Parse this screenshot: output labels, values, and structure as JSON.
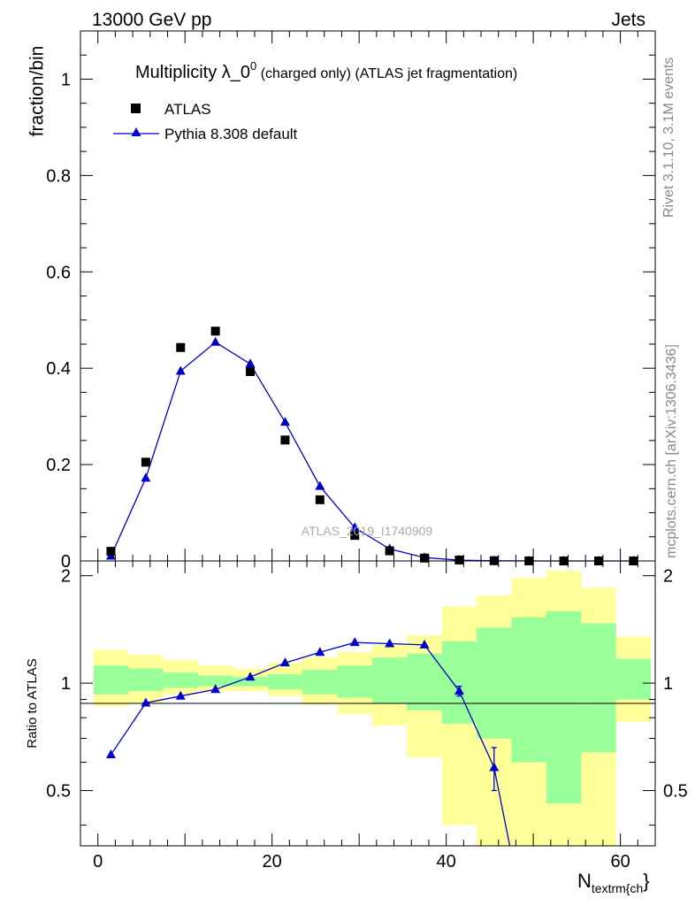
{
  "header": {
    "left": "13000 GeV pp",
    "right": "Jets"
  },
  "chart_data": [
    {
      "type": "scatter",
      "title": "Multiplicity λ_0",
      "title_sup": "0",
      "title_suffix_small": " (charged only)",
      "title_suffix": " (ATLAS jet fragmentation)",
      "ylabel": "fraction/bin",
      "xlim": [
        -2,
        64
      ],
      "ylim": [
        0,
        1.1
      ],
      "yticks": [
        0,
        0.2,
        0.4,
        0.6,
        0.8,
        1
      ],
      "ytick_labels": [
        "0",
        "0.2",
        "0.4",
        "0.6",
        "0.8",
        "1"
      ],
      "legend": {
        "placement": "top-left",
        "entries": [
          "ATLAS",
          "Pythia 8.308 default"
        ]
      },
      "watermark": "ATLAS_2019_I1740909",
      "series": [
        {
          "name": "ATLAS",
          "marker": "square",
          "color": "#000000",
          "x": [
            1.5,
            5.5,
            9.5,
            13.5,
            17.5,
            21.5,
            25.5,
            29.5,
            33.5,
            37.5,
            41.5,
            45.5,
            49.5,
            53.5,
            57.5,
            61.5
          ],
          "y": [
            0.02,
            0.205,
            0.443,
            0.477,
            0.393,
            0.251,
            0.127,
            0.053,
            0.021,
            0.006,
            0.002,
            0.0005,
            0.0001,
            0.0,
            0.0,
            0.0
          ]
        },
        {
          "name": "Pythia 8.308 default",
          "marker": "triangle",
          "color": "#0000cc",
          "x": [
            1.5,
            5.5,
            9.5,
            13.5,
            17.5,
            21.5,
            25.5,
            29.5,
            33.5,
            37.5,
            41.5,
            45.5,
            49.5,
            53.5,
            57.5,
            61.5
          ],
          "y": [
            0.01,
            0.172,
            0.394,
            0.454,
            0.409,
            0.288,
            0.155,
            0.069,
            0.025,
            0.007,
            0.0015,
            0.0003,
            0.0,
            0.0,
            0.0,
            0.0
          ]
        }
      ]
    },
    {
      "type": "line",
      "ylabel": "Ratio to ATLAS",
      "xlabel_main": "N",
      "xlabel_sub": "textrm{ch",
      "xlabel_tail": "}",
      "xlim": [
        -2,
        64
      ],
      "ylim": [
        0.35,
        2.2
      ],
      "xticks": [
        0,
        20,
        40,
        60
      ],
      "xtick_labels": [
        "0",
        "20",
        "40",
        "60"
      ],
      "yticks": [
        0.5,
        1,
        2
      ],
      "ytick_labels": [
        "0.5",
        "1",
        "2"
      ],
      "bands": {
        "bin_edges": [
          -0.5,
          3.5,
          7.5,
          11.5,
          15.5,
          19.5,
          23.5,
          27.5,
          31.5,
          35.5,
          39.5,
          43.5,
          47.5,
          51.5,
          55.5,
          59.5,
          63.5
        ],
        "yellow_lo": [
          0.86,
          0.88,
          0.93,
          0.95,
          0.95,
          0.92,
          0.87,
          0.82,
          0.76,
          0.62,
          0.4,
          0.35,
          0.35,
          0.35,
          0.35,
          0.78
        ],
        "yellow_hi": [
          1.24,
          1.2,
          1.16,
          1.12,
          1.1,
          1.14,
          1.18,
          1.22,
          1.28,
          1.36,
          1.64,
          1.76,
          1.97,
          2.06,
          1.85,
          1.35
        ],
        "green_lo": [
          0.93,
          0.95,
          0.97,
          0.98,
          0.98,
          0.96,
          0.93,
          0.91,
          0.88,
          0.84,
          0.77,
          0.7,
          0.6,
          0.46,
          0.64,
          0.9
        ],
        "green_hi": [
          1.12,
          1.1,
          1.07,
          1.05,
          1.04,
          1.06,
          1.09,
          1.12,
          1.18,
          1.21,
          1.31,
          1.43,
          1.53,
          1.59,
          1.47,
          1.17
        ],
        "yellow_color": "#ffff99",
        "green_color": "#99ff99"
      },
      "series": [
        {
          "name": "Pythia 8.308 default",
          "color": "#0000cc",
          "x": [
            1.5,
            5.5,
            9.5,
            13.5,
            17.5,
            21.5,
            25.5,
            29.5,
            33.5,
            37.5,
            41.5,
            45.5
          ],
          "y": [
            0.63,
            0.88,
            0.92,
            0.96,
            1.04,
            1.14,
            1.22,
            1.3,
            1.29,
            1.28,
            0.95,
            0.58
          ],
          "err": [
            0,
            0,
            0,
            0,
            0,
            0,
            0,
            0,
            0,
            0,
            0.03,
            0.08
          ],
          "tail_x": 47.3,
          "tail_y": 0.35
        }
      ]
    }
  ],
  "side": {
    "rivet": "Rivet 3.1.10,  3.1M events",
    "mcplots": "mcplots.cern.ch [arXiv:1306.3436]"
  }
}
